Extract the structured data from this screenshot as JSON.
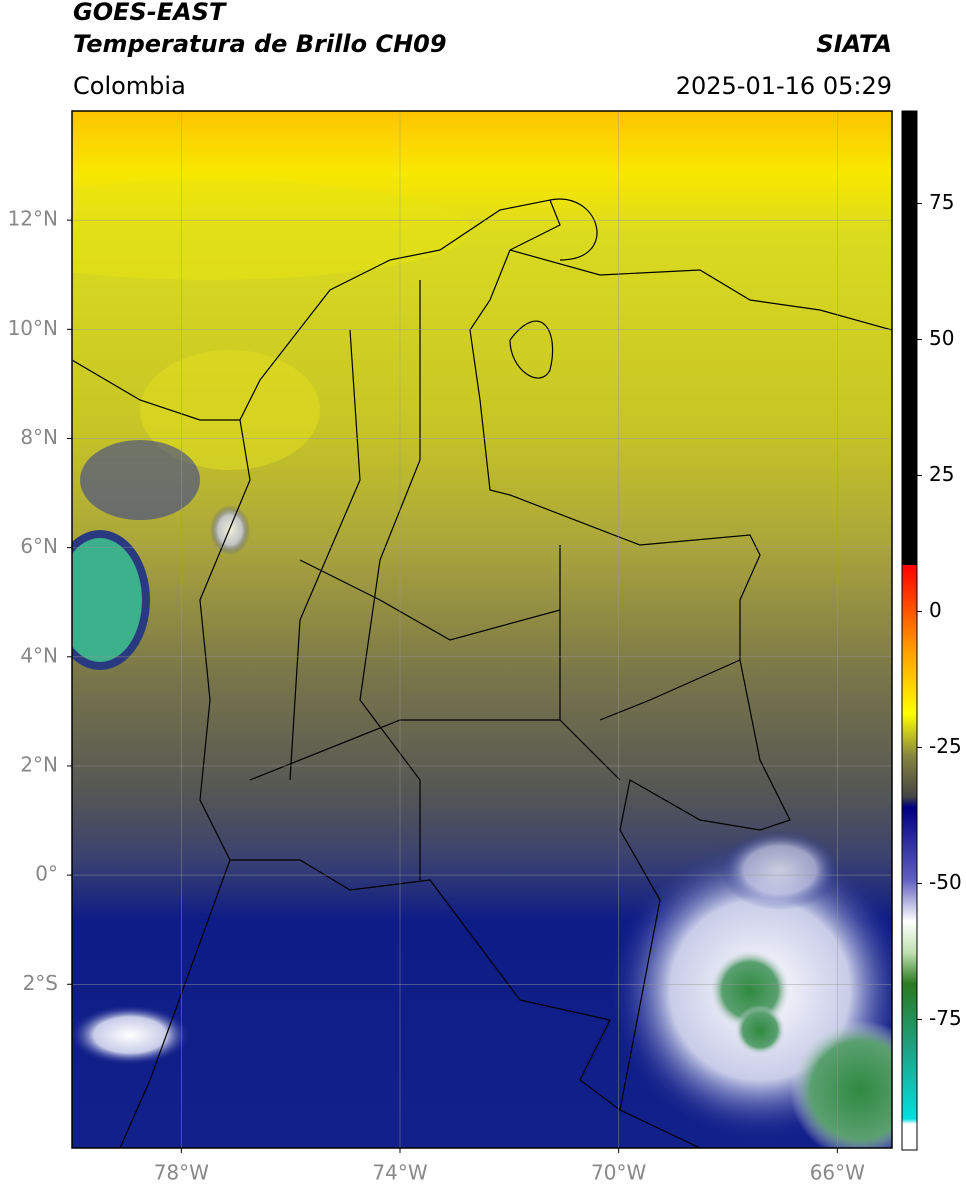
{
  "header": {
    "title": "GOES-EAST",
    "subtitle": "Temperatura de Brillo CH09",
    "region": "Colombia",
    "source": "SIATA",
    "datetime": "2025-01-16 05:29"
  },
  "map": {
    "xlim": [
      -80,
      -65
    ],
    "ylim": [
      -5,
      14
    ],
    "xticks": [
      {
        "value": -78,
        "label": "78°W"
      },
      {
        "value": -74,
        "label": "74°W"
      },
      {
        "value": -70,
        "label": "70°W"
      },
      {
        "value": -66,
        "label": "66°W"
      }
    ],
    "yticks": [
      {
        "value": 12,
        "label": "12°N"
      },
      {
        "value": 10,
        "label": "10°N"
      },
      {
        "value": 8,
        "label": "8°N"
      },
      {
        "value": 6,
        "label": "6°N"
      },
      {
        "value": 4,
        "label": "4°N"
      },
      {
        "value": 2,
        "label": "2°N"
      },
      {
        "value": 0,
        "label": "0°"
      },
      {
        "value": -2,
        "label": "2°S"
      }
    ],
    "grid": true
  },
  "colorbar": {
    "lim": [
      -99,
      92
    ],
    "ticks": [
      75,
      50,
      25,
      0,
      -25,
      -50,
      -75
    ]
  }
}
